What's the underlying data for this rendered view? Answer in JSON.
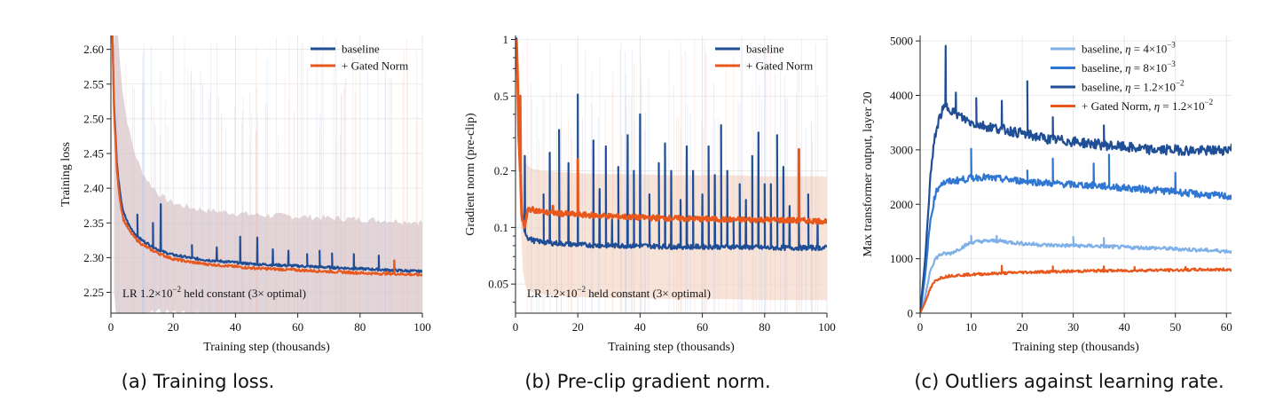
{
  "colors": {
    "baseline": "#1f4e96",
    "gated": "#e8581c",
    "band": "#d9c7c9",
    "grid": "#e3e3e3",
    "lr_4e3": "#7fb0e8",
    "lr_8e3": "#2f77d2",
    "lr_12e2": "#1f4e96"
  },
  "captions": {
    "a": "(a) Training loss.",
    "b": "(b) Pre-clip gradient norm.",
    "c": "(c) Outliers against learning rate."
  },
  "chart_data": [
    {
      "type": "line",
      "xlabel": "Training step (thousands)",
      "ylabel": "Training loss",
      "xlim": [
        0,
        100
      ],
      "ylim": [
        2.22,
        2.62
      ],
      "xticks": [
        "0",
        "20",
        "40",
        "60",
        "80",
        "100"
      ],
      "yticks": [
        "2.25",
        "2.30",
        "2.35",
        "2.40",
        "2.45",
        "2.50",
        "2.55",
        "2.60"
      ],
      "grid": true,
      "legend": "top-right",
      "annotation_prefix": "LR 1.2×10",
      "annotation_exp": "−2",
      "annotation_suffix": " held constant  (3× optimal)",
      "series": [
        {
          "name": "baseline",
          "x": [
            0.5,
            1,
            2,
            3,
            4,
            6,
            8,
            10,
            13,
            15,
            17,
            20,
            25,
            30,
            35,
            40,
            45,
            50,
            55,
            60,
            65,
            70,
            75,
            80,
            85,
            90,
            95,
            100
          ],
          "y": [
            2.62,
            2.52,
            2.43,
            2.39,
            2.365,
            2.345,
            2.333,
            2.325,
            2.317,
            2.312,
            2.308,
            2.304,
            2.3,
            2.297,
            2.295,
            2.293,
            2.291,
            2.29,
            2.289,
            2.288,
            2.287,
            2.286,
            2.285,
            2.284,
            2.283,
            2.282,
            2.281,
            2.28
          ],
          "spikes": [
            [
              8.5,
              2.362
            ],
            [
              13.5,
              2.35
            ],
            [
              16,
              2.377
            ],
            [
              26,
              2.318
            ],
            [
              34,
              2.315
            ],
            [
              41.5,
              2.33
            ],
            [
              47,
              2.329
            ],
            [
              52,
              2.312
            ],
            [
              57,
              2.31
            ],
            [
              63,
              2.305
            ],
            [
              67,
              2.31
            ],
            [
              71,
              2.306
            ],
            [
              78,
              2.305
            ],
            [
              86,
              2.303
            ],
            [
              91,
              2.296
            ]
          ]
        },
        {
          "name": "+ Gated Norm",
          "x": [
            0.5,
            1,
            2,
            3,
            4,
            6,
            8,
            10,
            13,
            15,
            17,
            20,
            25,
            30,
            35,
            40,
            45,
            50,
            55,
            60,
            65,
            70,
            75,
            80,
            85,
            90,
            95,
            100
          ],
          "y": [
            2.62,
            2.51,
            2.42,
            2.38,
            2.355,
            2.338,
            2.327,
            2.319,
            2.311,
            2.307,
            2.303,
            2.298,
            2.294,
            2.291,
            2.289,
            2.287,
            2.285,
            2.284,
            2.283,
            2.282,
            2.281,
            2.28,
            2.279,
            2.278,
            2.277,
            2.277,
            2.276,
            2.275
          ],
          "spikes": [
            [
              91,
              2.296
            ]
          ]
        }
      ]
    },
    {
      "type": "line",
      "xlabel": "Training step (thousands)",
      "ylabel": "Gradient norm (pre-clip)",
      "xlim": [
        0,
        100
      ],
      "ylim": [
        0.035,
        1.05
      ],
      "yscale": "log",
      "xticks": [
        "0",
        "20",
        "40",
        "60",
        "80",
        "100"
      ],
      "yticks": [
        "0.05",
        "0.1",
        "0.2",
        "0.5",
        "1"
      ],
      "grid": true,
      "legend": "top-right",
      "annotation_prefix": "LR 1.2×10",
      "annotation_exp": "−2",
      "annotation_suffix": " held constant  (3× optimal)",
      "series": [
        {
          "name": "baseline",
          "x": [
            0.3,
            1,
            2,
            3,
            4,
            6,
            10,
            20,
            30,
            40,
            50,
            60,
            70,
            80,
            90,
            100
          ],
          "y": [
            1.0,
            0.35,
            0.12,
            0.095,
            0.088,
            0.085,
            0.083,
            0.081,
            0.08,
            0.08,
            0.079,
            0.079,
            0.079,
            0.078,
            0.078,
            0.078
          ],
          "spikes": [
            [
              3,
              0.24
            ],
            [
              9,
              0.15
            ],
            [
              11,
              0.25
            ],
            [
              14,
              0.33
            ],
            [
              17,
              0.22
            ],
            [
              20,
              0.51
            ],
            [
              25,
              0.29
            ],
            [
              27,
              0.16
            ],
            [
              29,
              0.27
            ],
            [
              31,
              0.11
            ],
            [
              33,
              0.21
            ],
            [
              36,
              0.31
            ],
            [
              38,
              0.2
            ],
            [
              40,
              0.4
            ],
            [
              43,
              0.15
            ],
            [
              46,
              0.22
            ],
            [
              48,
              0.28
            ],
            [
              50,
              0.2
            ],
            [
              53,
              0.14
            ],
            [
              55,
              0.27
            ],
            [
              57,
              0.2
            ],
            [
              60,
              0.15
            ],
            [
              62,
              0.27
            ],
            [
              64,
              0.19
            ],
            [
              66,
              0.35
            ],
            [
              68,
              0.2
            ],
            [
              70,
              0.11
            ],
            [
              72,
              0.17
            ],
            [
              74,
              0.14
            ],
            [
              76,
              0.24
            ],
            [
              78,
              0.32
            ],
            [
              80,
              0.17
            ],
            [
              82,
              0.17
            ],
            [
              84,
              0.31
            ],
            [
              86,
              0.21
            ],
            [
              88,
              0.13
            ],
            [
              91,
              0.11
            ],
            [
              94,
              0.15
            ],
            [
              97,
              0.11
            ]
          ]
        },
        {
          "name": "+ Gated Norm",
          "x": [
            0.3,
            1,
            2,
            3,
            4,
            6,
            10,
            20,
            30,
            40,
            50,
            60,
            70,
            80,
            90,
            100
          ],
          "y": [
            1.0,
            0.3,
            0.11,
            0.1,
            0.125,
            0.124,
            0.12,
            0.117,
            0.115,
            0.113,
            0.112,
            0.111,
            0.11,
            0.11,
            0.109,
            0.108
          ],
          "spikes": [
            [
              1.5,
              0.5
            ],
            [
              12,
              0.13
            ],
            [
              20,
              0.23
            ],
            [
              91,
              0.26
            ]
          ]
        }
      ]
    },
    {
      "type": "line",
      "xlabel": "Training step (thousands)",
      "ylabel": "Max transformer output, layer 20",
      "xlim": [
        0,
        61
      ],
      "ylim": [
        0,
        5100
      ],
      "xticks": [
        "0",
        "10",
        "20",
        "30",
        "40",
        "50",
        "60"
      ],
      "yticks": [
        "0",
        "1000",
        "2000",
        "3000",
        "4000",
        "5000"
      ],
      "grid": true,
      "legend": "top-right",
      "series": [
        {
          "name_prefix": "baseline, ",
          "name_eta": "η",
          "name_val": " = 4×10",
          "name_exp": "−3",
          "x": [
            0,
            1,
            2,
            3,
            4,
            6,
            8,
            10,
            12,
            15,
            20,
            25,
            30,
            35,
            40,
            45,
            50,
            55,
            60,
            61
          ],
          "y": [
            0,
            300,
            800,
            1000,
            1080,
            1100,
            1200,
            1300,
            1320,
            1330,
            1280,
            1250,
            1240,
            1230,
            1210,
            1200,
            1180,
            1160,
            1140,
            1130
          ],
          "spikes": [
            [
              10,
              1420
            ],
            [
              15,
              1420
            ],
            [
              30,
              1400
            ],
            [
              36,
              1380
            ]
          ]
        },
        {
          "name_prefix": "baseline, ",
          "name_eta": "η",
          "name_val": " = 8×10",
          "name_exp": "−3",
          "x": [
            0,
            1,
            2,
            3,
            4,
            6,
            8,
            10,
            12,
            15,
            20,
            25,
            30,
            35,
            40,
            45,
            50,
            55,
            60,
            61
          ],
          "y": [
            0,
            700,
            1700,
            2200,
            2380,
            2420,
            2450,
            2480,
            2500,
            2470,
            2430,
            2390,
            2360,
            2340,
            2300,
            2270,
            2230,
            2180,
            2150,
            2130
          ],
          "spikes": [
            [
              10,
              3020
            ],
            [
              21,
              2620
            ],
            [
              26,
              2840
            ],
            [
              34,
              2750
            ],
            [
              37,
              2910
            ],
            [
              50,
              2580
            ]
          ]
        },
        {
          "name_prefix": "baseline, ",
          "name_eta": "η",
          "name_val": " = 1.2×10",
          "name_exp": "−2",
          "x": [
            0,
            1,
            2,
            3,
            4,
            5,
            6,
            8,
            10,
            12,
            15,
            20,
            25,
            30,
            35,
            40,
            45,
            50,
            55,
            60,
            61
          ],
          "y": [
            0,
            1000,
            2500,
            3300,
            3650,
            3800,
            3750,
            3600,
            3500,
            3450,
            3400,
            3300,
            3200,
            3150,
            3100,
            3050,
            3000,
            3000,
            2980,
            3000,
            3050
          ],
          "spikes": [
            [
              5,
              4910
            ],
            [
              7,
              4050
            ],
            [
              11,
              3950
            ],
            [
              16,
              3900
            ],
            [
              21,
              4260
            ],
            [
              26,
              3600
            ],
            [
              36,
              3450
            ]
          ]
        },
        {
          "name_prefix": "+ Gated Norm, ",
          "name_eta": "η",
          "name_val": " = 1.2×10",
          "name_exp": "−2",
          "x": [
            0,
            1,
            2,
            3,
            4,
            6,
            8,
            10,
            15,
            20,
            25,
            30,
            35,
            40,
            45,
            50,
            55,
            60,
            61
          ],
          "y": [
            0,
            200,
            450,
            600,
            650,
            690,
            700,
            710,
            730,
            750,
            760,
            770,
            780,
            780,
            790,
            790,
            800,
            800,
            800
          ],
          "spikes": [
            [
              16,
              870
            ],
            [
              26,
              860
            ],
            [
              36,
              860
            ],
            [
              42,
              850
            ],
            [
              52,
              850
            ]
          ]
        }
      ]
    }
  ]
}
